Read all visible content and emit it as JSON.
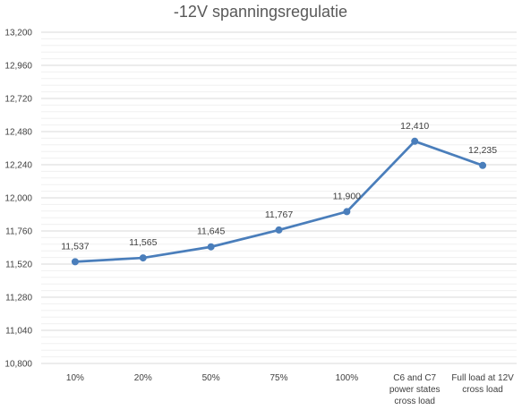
{
  "chart_data": {
    "type": "line",
    "title": "-12V spanningsregulatie",
    "xlabel": "",
    "ylabel": "",
    "categories": [
      [
        "10%"
      ],
      [
        "20%"
      ],
      [
        "50%"
      ],
      [
        "75%"
      ],
      [
        "100%"
      ],
      [
        "C6 and C7",
        "power states",
        "cross load"
      ],
      [
        "Full load at 12V",
        "cross load"
      ]
    ],
    "series": [
      {
        "values": [
          11.537,
          11.565,
          11.645,
          11.767,
          11.9,
          12.41,
          12.235
        ],
        "labels": [
          "11,537",
          "11,565",
          "11,645",
          "11,767",
          "11,900",
          "12,410",
          "12,235"
        ]
      }
    ],
    "ylim": [
      10.8,
      13.2
    ],
    "yticks": [
      10.8,
      11.04,
      11.28,
      11.52,
      11.76,
      12.0,
      12.24,
      12.48,
      12.72,
      12.96,
      13.2
    ],
    "ytick_labels": [
      "10,800",
      "11,040",
      "11,280",
      "11,520",
      "11,760",
      "12,000",
      "12,240",
      "12,480",
      "12,720",
      "12,960",
      "13,200"
    ],
    "grid": true,
    "minor_grid": true,
    "colors": {
      "line": "#4a7ebb",
      "marker": "#4a7ebb",
      "grid_major": "#d9d9d9",
      "grid_minor": "#f0f0f0",
      "text": "#404040",
      "title": "#595959"
    }
  }
}
